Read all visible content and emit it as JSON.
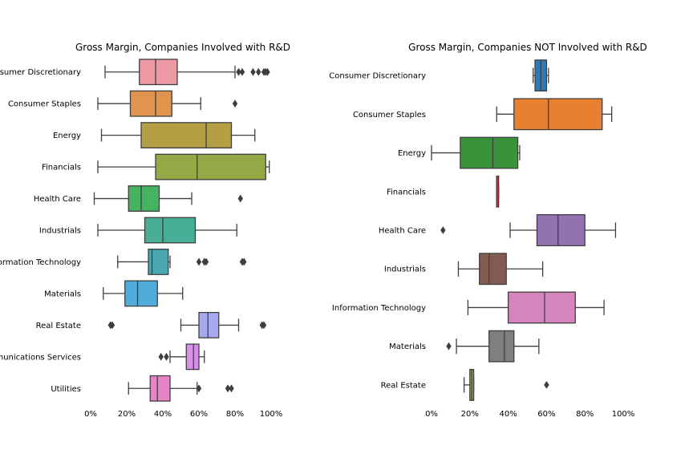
{
  "chart_data": [
    {
      "type": "box",
      "title": "Gross Margin, Companies Involved with R&D",
      "xlim": [
        0,
        1
      ],
      "xticks": [
        0,
        0.2,
        0.4,
        0.6,
        0.8,
        1.0
      ],
      "xtick_labels": [
        "0%",
        "20%",
        "40%",
        "60%",
        "80%",
        "100%"
      ],
      "categories": [
        {
          "name": "Consumer Discretionary",
          "color": "#ee98a3",
          "whisker_low": 0.08,
          "q1": 0.27,
          "median": 0.36,
          "q3": 0.48,
          "whisker_high": 0.8,
          "outliers": [
            0.82,
            0.84,
            0.9,
            0.93,
            0.96,
            0.97,
            0.98
          ]
        },
        {
          "name": "Consumer Staples",
          "color": "#e0944d",
          "whisker_low": 0.04,
          "q1": 0.22,
          "median": 0.36,
          "q3": 0.45,
          "whisker_high": 0.61,
          "outliers": [
            0.8
          ]
        },
        {
          "name": "Energy",
          "color": "#b49f45",
          "whisker_low": 0.06,
          "q1": 0.28,
          "median": 0.64,
          "q3": 0.78,
          "whisker_high": 0.91,
          "outliers": []
        },
        {
          "name": "Financials",
          "color": "#92a945",
          "whisker_low": 0.04,
          "q1": 0.36,
          "median": 0.59,
          "q3": 0.97,
          "whisker_high": 0.99,
          "outliers": []
        },
        {
          "name": "Health Care",
          "color": "#45b461",
          "whisker_low": 0.02,
          "q1": 0.21,
          "median": 0.28,
          "q3": 0.38,
          "whisker_high": 0.56,
          "outliers": [
            0.83
          ]
        },
        {
          "name": "Industrials",
          "color": "#48ae95",
          "whisker_low": 0.04,
          "q1": 0.3,
          "median": 0.4,
          "q3": 0.58,
          "whisker_high": 0.81,
          "outliers": []
        },
        {
          "name": "Information Technology",
          "color": "#4aa9b0",
          "whisker_low": 0.15,
          "q1": 0.32,
          "median": 0.34,
          "q3": 0.43,
          "whisker_high": 0.44,
          "outliers": [
            0.6,
            0.63,
            0.64,
            0.84,
            0.85
          ]
        },
        {
          "name": "Materials",
          "color": "#52acd9",
          "whisker_low": 0.07,
          "q1": 0.19,
          "median": 0.26,
          "q3": 0.37,
          "whisker_high": 0.51,
          "outliers": []
        },
        {
          "name": "Real Estate",
          "color": "#a6a8f0",
          "whisker_low": 0.5,
          "q1": 0.6,
          "median": 0.65,
          "q3": 0.71,
          "whisker_high": 0.82,
          "outliers": [
            0.11,
            0.12,
            0.95,
            0.96
          ]
        },
        {
          "name": "Telecommunications Services",
          "color": "#d88fec",
          "whisker_low": 0.44,
          "q1": 0.53,
          "median": 0.57,
          "q3": 0.6,
          "whisker_high": 0.63,
          "outliers": [
            0.39,
            0.42
          ]
        },
        {
          "name": "Utilities",
          "color": "#e784c6",
          "whisker_low": 0.21,
          "q1": 0.33,
          "median": 0.37,
          "q3": 0.44,
          "whisker_high": 0.59,
          "outliers": [
            0.6,
            0.76,
            0.78
          ]
        }
      ]
    },
    {
      "type": "box",
      "title": "Gross Margin, Companies NOT Involved with R&D",
      "xlim": [
        0,
        1
      ],
      "xticks": [
        0,
        0.2,
        0.4,
        0.6,
        0.8,
        1.0
      ],
      "xtick_labels": [
        "0%",
        "20%",
        "40%",
        "60%",
        "80%",
        "100%"
      ],
      "categories": [
        {
          "name": "Consumer Discretionary",
          "color": "#2f7ab4",
          "whisker_low": 0.53,
          "q1": 0.54,
          "median": 0.57,
          "q3": 0.6,
          "whisker_high": 0.61,
          "outliers": []
        },
        {
          "name": "Consumer Staples",
          "color": "#e8812f",
          "whisker_low": 0.34,
          "q1": 0.43,
          "median": 0.61,
          "q3": 0.89,
          "whisker_high": 0.94,
          "outliers": []
        },
        {
          "name": "Energy",
          "color": "#3a923a",
          "whisker_low": 0.0,
          "q1": 0.15,
          "median": 0.32,
          "q3": 0.45,
          "whisker_high": 0.46,
          "outliers": []
        },
        {
          "name": "Financials",
          "color": "#c03d3e",
          "whisker_low": 0.34,
          "q1": 0.34,
          "median": 0.34,
          "q3": 0.35,
          "whisker_high": 0.35,
          "outliers": []
        },
        {
          "name": "Health Care",
          "color": "#9372b2",
          "whisker_low": 0.41,
          "q1": 0.55,
          "median": 0.66,
          "q3": 0.8,
          "whisker_high": 0.96,
          "outliers": [
            0.06
          ]
        },
        {
          "name": "Industrials",
          "color": "#845b53",
          "whisker_low": 0.14,
          "q1": 0.25,
          "median": 0.3,
          "q3": 0.39,
          "whisker_high": 0.58,
          "outliers": []
        },
        {
          "name": "Information Technology",
          "color": "#d584bd",
          "whisker_low": 0.19,
          "q1": 0.4,
          "median": 0.59,
          "q3": 0.75,
          "whisker_high": 0.9,
          "outliers": []
        },
        {
          "name": "Materials",
          "color": "#7f7f7f",
          "whisker_low": 0.13,
          "q1": 0.3,
          "median": 0.38,
          "q3": 0.43,
          "whisker_high": 0.56,
          "outliers": [
            0.09
          ]
        },
        {
          "name": "Real Estate",
          "color": "#a9aa35",
          "whisker_low": 0.17,
          "q1": 0.2,
          "median": 0.21,
          "q3": 0.22,
          "whisker_high": 0.22,
          "outliers": [
            0.6
          ]
        }
      ]
    }
  ]
}
